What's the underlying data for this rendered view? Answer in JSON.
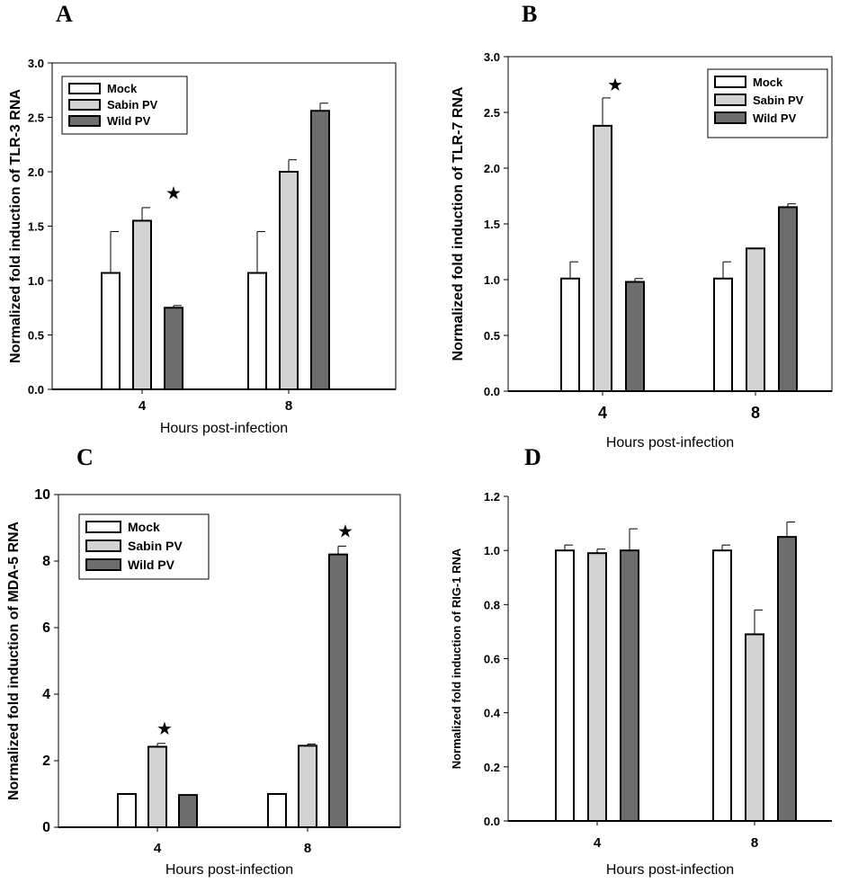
{
  "figure": {
    "series_colors": {
      "Mock": "#ffffff",
      "Sabin PV": "#d3d3d3",
      "Wild PV": "#6e6e6e"
    },
    "star_symbol": "★"
  },
  "chart_data": [
    {
      "panel": "A",
      "type": "bar",
      "title": "",
      "categories": [
        "4",
        "8"
      ],
      "xlabel": "Hours post-infection",
      "ylabel": "Normalized fold induction of TLR-3 RNA",
      "ylim": [
        0,
        3.0
      ],
      "yticks": [
        "0.0",
        "0.5",
        "1.0",
        "1.5",
        "2.0",
        "2.5",
        "3.0"
      ],
      "legend_position": "top-left",
      "series": [
        {
          "name": "Mock",
          "values": [
            1.07,
            1.07
          ],
          "errors": [
            0.38,
            0.38
          ]
        },
        {
          "name": "Sabin PV",
          "values": [
            1.55,
            2.0
          ],
          "errors": [
            0.12,
            0.11
          ]
        },
        {
          "name": "Wild PV",
          "values": [
            0.75,
            2.56
          ],
          "errors": [
            0.02,
            0.07
          ]
        }
      ],
      "annotations": [
        {
          "text": "★",
          "category": "4",
          "series": "Wild PV"
        }
      ]
    },
    {
      "panel": "B",
      "type": "bar",
      "title": "",
      "categories": [
        "4",
        "8"
      ],
      "xlabel": "Hours post-infection",
      "ylabel": "Normalized fold induction of TLR-7 RNA",
      "ylim": [
        0,
        3.0
      ],
      "yticks": [
        "0.0",
        "0.5",
        "1.0",
        "1.5",
        "2.0",
        "2.5",
        "3.0"
      ],
      "legend_position": "top-right",
      "series": [
        {
          "name": "Mock",
          "values": [
            1.01,
            1.01
          ],
          "errors": [
            0.15,
            0.15
          ]
        },
        {
          "name": "Sabin PV",
          "values": [
            2.38,
            1.28
          ],
          "errors": [
            0.25,
            0.0
          ]
        },
        {
          "name": "Wild PV",
          "values": [
            0.98,
            1.65
          ],
          "errors": [
            0.03,
            0.03
          ]
        }
      ],
      "annotations": [
        {
          "text": "★",
          "category": "4",
          "series": "Sabin PV"
        }
      ]
    },
    {
      "panel": "C",
      "type": "bar",
      "title": "",
      "categories": [
        "4",
        "8"
      ],
      "xlabel": "Hours post-infection",
      "ylabel": "Normalized fold induction of MDA-5 RNA",
      "ylim": [
        0,
        10
      ],
      "yticks": [
        "0",
        "2",
        "4",
        "6",
        "8",
        "10"
      ],
      "legend_position": "top-left",
      "series": [
        {
          "name": "Mock",
          "values": [
            1.0,
            1.0
          ],
          "errors": [
            0,
            0
          ]
        },
        {
          "name": "Sabin PV",
          "values": [
            2.42,
            2.45
          ],
          "errors": [
            0.1,
            0.05
          ]
        },
        {
          "name": "Wild PV",
          "values": [
            0.97,
            8.2
          ],
          "errors": [
            0,
            0.25
          ]
        }
      ],
      "annotations": [
        {
          "text": "★",
          "category": "4",
          "series": "Sabin PV"
        },
        {
          "text": "★",
          "category": "8",
          "series": "Wild PV"
        }
      ]
    },
    {
      "panel": "D",
      "type": "bar",
      "title": "",
      "categories": [
        "4",
        "8"
      ],
      "xlabel": "Hours post-infection",
      "ylabel": "Normalized fold induction of RIG-1 RNA",
      "ylim": [
        0,
        1.2
      ],
      "yticks": [
        "0.0",
        "0.2",
        "0.4",
        "0.6",
        "0.8",
        "1.0",
        "1.2"
      ],
      "legend_position": "none",
      "series": [
        {
          "name": "Mock",
          "values": [
            1.0,
            1.0
          ],
          "errors": [
            0.02,
            0.02
          ]
        },
        {
          "name": "Sabin PV",
          "values": [
            0.99,
            0.69
          ],
          "errors": [
            0.015,
            0.09
          ]
        },
        {
          "name": "Wild PV",
          "values": [
            1.0,
            1.05
          ],
          "errors": [
            0.08,
            0.055
          ]
        }
      ],
      "annotations": []
    }
  ]
}
